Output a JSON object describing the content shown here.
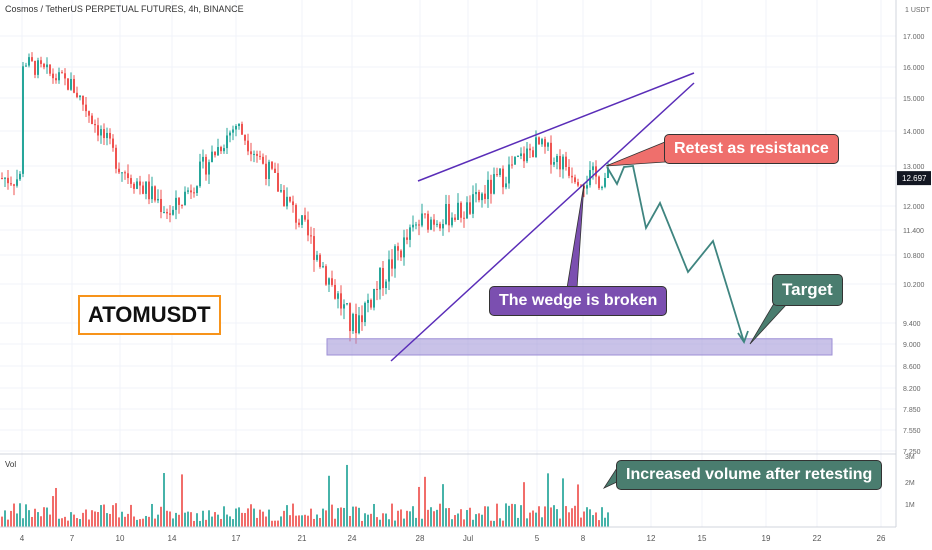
{
  "header": {
    "title": "Cosmos / TetherUS PERPETUAL FUTURES, 4h, BINANCE"
  },
  "chart_data": {
    "type": "candlestick",
    "symbol": "ATOMUSDT",
    "timeframe": "4h",
    "exchange": "BINANCE",
    "price_axis": {
      "unit_label": "USDT",
      "ticks": [
        "17.000",
        "16.000",
        "15.000",
        "14.000",
        "13.000",
        "12.000",
        "11.400",
        "10.800",
        "10.200",
        "9.400",
        "9.000",
        "8.600",
        "8.200",
        "7.850",
        "7.550",
        "7.250"
      ],
      "current_price": "12.697"
    },
    "time_axis": {
      "ticks": [
        "4",
        "7",
        "10",
        "14",
        "17",
        "21",
        "24",
        "28",
        "Jul",
        "5",
        "8",
        "12",
        "15",
        "19",
        "22",
        "26"
      ]
    },
    "volume_axis": {
      "label": "Vol",
      "ticks": [
        "3M",
        "2M",
        "1M"
      ]
    },
    "price_path": [
      {
        "x": "4",
        "y": 16.2
      },
      {
        "x": "7",
        "y": 15.4
      },
      {
        "x": "10",
        "y": 13.0
      },
      {
        "x": "14",
        "y": 11.8
      },
      {
        "x": "17",
        "y": 14.2
      },
      {
        "x": "21",
        "y": 11.5
      },
      {
        "x": "24",
        "y": 9.3
      },
      {
        "x": "28",
        "y": 11.6
      },
      {
        "x": "Jul",
        "y": 11.9
      },
      {
        "x": "5",
        "y": 13.6
      },
      {
        "x": "8",
        "y": 12.7
      }
    ],
    "annotations": {
      "support_zone": {
        "low": 8.8,
        "high": 9.1
      },
      "wedge_upper_line": "resistance trendline",
      "wedge_lower_line": "support trendline",
      "projection": "zigzag path down to target"
    },
    "colors": {
      "up": "#26a69a",
      "down": "#ef5350",
      "wedge": "#5a2db8",
      "zone": "#9d8fd6",
      "projection": "#3f8580",
      "retest": "#ef6f6c",
      "broken": "#7b4fb0",
      "target": "#4a7d6f"
    }
  },
  "labels": {
    "ticker": "ATOMUSDT",
    "retest": "Retest as resistance",
    "wedge": "The wedge is broken",
    "target": "Target",
    "volume": "Increased volume after retesting"
  }
}
